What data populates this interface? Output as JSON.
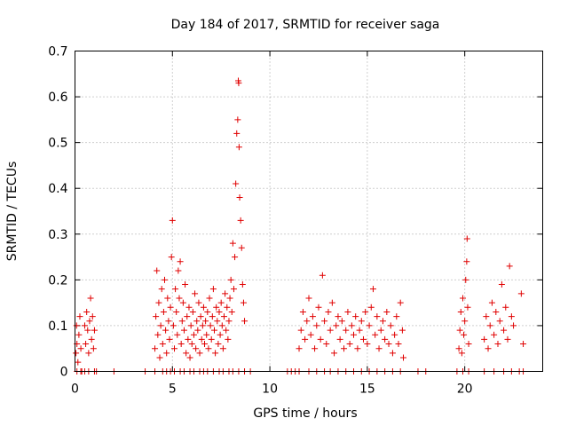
{
  "chart_data": {
    "type": "scatter",
    "title": "Day 184 of 2017, SRMTID for receiver saga",
    "xlabel": "GPS time / hours",
    "ylabel": "SRMTID / TECUs",
    "xlim": [
      0,
      24
    ],
    "ylim": [
      0,
      0.7
    ],
    "xticks": [
      0,
      5,
      10,
      15,
      20
    ],
    "xtick_labels": [
      "0",
      "5",
      "10",
      "15",
      "20"
    ],
    "yticks": [
      0,
      0.1,
      0.2,
      0.3,
      0.4,
      0.5,
      0.6,
      0.7
    ],
    "ytick_labels": [
      "0",
      "0.1",
      "0.2",
      "0.3",
      "0.4",
      "0.5",
      "0.6",
      "0.7"
    ],
    "grid": true,
    "marker": "plus",
    "color": "#e00000",
    "series": [
      {
        "name": "SRMTID",
        "points": [
          [
            0.05,
            0.04
          ],
          [
            0.08,
            0.1
          ],
          [
            0.1,
            0.06
          ],
          [
            0.15,
            0.02
          ],
          [
            0.2,
            0.08
          ],
          [
            0.25,
            0.12
          ],
          [
            0.3,
            0.05
          ],
          [
            0.5,
            0.1
          ],
          [
            0.55,
            0.06
          ],
          [
            0.6,
            0.13
          ],
          [
            0.65,
            0.09
          ],
          [
            0.7,
            0.04
          ],
          [
            0.75,
            0.11
          ],
          [
            0.8,
            0.16
          ],
          [
            0.85,
            0.07
          ],
          [
            0.9,
            0.12
          ],
          [
            0.95,
            0.05
          ],
          [
            1.0,
            0.09
          ],
          [
            4.1,
            0.05
          ],
          [
            4.15,
            0.12
          ],
          [
            4.2,
            0.22
          ],
          [
            4.25,
            0.08
          ],
          [
            4.3,
            0.15
          ],
          [
            4.35,
            0.03
          ],
          [
            4.4,
            0.1
          ],
          [
            4.45,
            0.18
          ],
          [
            4.5,
            0.06
          ],
          [
            4.55,
            0.13
          ],
          [
            4.6,
            0.2
          ],
          [
            4.65,
            0.09
          ],
          [
            4.7,
            0.04
          ],
          [
            4.75,
            0.16
          ],
          [
            4.8,
            0.11
          ],
          [
            4.85,
            0.07
          ],
          [
            4.9,
            0.14
          ],
          [
            4.95,
            0.25
          ],
          [
            5.0,
            0.33
          ],
          [
            5.05,
            0.1
          ],
          [
            5.1,
            0.05
          ],
          [
            5.15,
            0.18
          ],
          [
            5.2,
            0.13
          ],
          [
            5.25,
            0.08
          ],
          [
            5.3,
            0.22
          ],
          [
            5.35,
            0.16
          ],
          [
            5.4,
            0.24
          ],
          [
            5.45,
            0.06
          ],
          [
            5.5,
            0.11
          ],
          [
            5.55,
            0.15
          ],
          [
            5.6,
            0.09
          ],
          [
            5.65,
            0.19
          ],
          [
            5.7,
            0.04
          ],
          [
            5.75,
            0.12
          ],
          [
            5.8,
            0.07
          ],
          [
            5.85,
            0.14
          ],
          [
            5.9,
            0.03
          ],
          [
            5.95,
            0.1
          ],
          [
            6.0,
            0.06
          ],
          [
            6.05,
            0.13
          ],
          [
            6.1,
            0.08
          ],
          [
            6.15,
            0.17
          ],
          [
            6.2,
            0.05
          ],
          [
            6.25,
            0.11
          ],
          [
            6.3,
            0.09
          ],
          [
            6.35,
            0.15
          ],
          [
            6.4,
            0.04
          ],
          [
            6.45,
            0.12
          ],
          [
            6.5,
            0.07
          ],
          [
            6.55,
            0.1
          ],
          [
            6.6,
            0.14
          ],
          [
            6.65,
            0.06
          ],
          [
            6.7,
            0.11
          ],
          [
            6.75,
            0.08
          ],
          [
            6.8,
            0.13
          ],
          [
            6.85,
            0.05
          ],
          [
            6.9,
            0.16
          ],
          [
            6.95,
            0.1
          ],
          [
            7.0,
            0.07
          ],
          [
            7.05,
            0.12
          ],
          [
            7.1,
            0.18
          ],
          [
            7.15,
            0.09
          ],
          [
            7.2,
            0.04
          ],
          [
            7.25,
            0.14
          ],
          [
            7.3,
            0.11
          ],
          [
            7.35,
            0.06
          ],
          [
            7.4,
            0.13
          ],
          [
            7.45,
            0.08
          ],
          [
            7.5,
            0.15
          ],
          [
            7.55,
            0.1
          ],
          [
            7.6,
            0.05
          ],
          [
            7.65,
            0.12
          ],
          [
            7.7,
            0.17
          ],
          [
            7.75,
            0.09
          ],
          [
            7.8,
            0.14
          ],
          [
            7.85,
            0.07
          ],
          [
            7.9,
            0.11
          ],
          [
            7.95,
            0.16
          ],
          [
            8.0,
            0.2
          ],
          [
            8.05,
            0.13
          ],
          [
            8.1,
            0.28
          ],
          [
            8.15,
            0.18
          ],
          [
            8.2,
            0.25
          ],
          [
            8.25,
            0.41
          ],
          [
            8.3,
            0.52
          ],
          [
            8.35,
            0.55
          ],
          [
            8.38,
            0.635
          ],
          [
            8.4,
            0.63
          ],
          [
            8.42,
            0.49
          ],
          [
            8.45,
            0.38
          ],
          [
            8.5,
            0.33
          ],
          [
            8.55,
            0.27
          ],
          [
            8.6,
            0.19
          ],
          [
            8.65,
            0.15
          ],
          [
            8.7,
            0.11
          ],
          [
            11.5,
            0.05
          ],
          [
            11.6,
            0.09
          ],
          [
            11.7,
            0.13
          ],
          [
            11.8,
            0.07
          ],
          [
            11.9,
            0.11
          ],
          [
            12.0,
            0.16
          ],
          [
            12.1,
            0.08
          ],
          [
            12.2,
            0.12
          ],
          [
            12.3,
            0.05
          ],
          [
            12.4,
            0.1
          ],
          [
            12.5,
            0.14
          ],
          [
            12.6,
            0.07
          ],
          [
            12.7,
            0.21
          ],
          [
            12.8,
            0.11
          ],
          [
            12.9,
            0.06
          ],
          [
            13.0,
            0.13
          ],
          [
            13.1,
            0.09
          ],
          [
            13.2,
            0.15
          ],
          [
            13.3,
            0.04
          ],
          [
            13.4,
            0.1
          ],
          [
            13.5,
            0.12
          ],
          [
            13.6,
            0.07
          ],
          [
            13.7,
            0.11
          ],
          [
            13.8,
            0.05
          ],
          [
            13.9,
            0.09
          ],
          [
            14.0,
            0.13
          ],
          [
            14.1,
            0.06
          ],
          [
            14.2,
            0.1
          ],
          [
            14.3,
            0.08
          ],
          [
            14.4,
            0.12
          ],
          [
            14.5,
            0.05
          ],
          [
            14.6,
            0.09
          ],
          [
            14.7,
            0.11
          ],
          [
            14.8,
            0.07
          ],
          [
            14.9,
            0.13
          ],
          [
            15.0,
            0.06
          ],
          [
            15.1,
            0.1
          ],
          [
            15.2,
            0.14
          ],
          [
            15.3,
            0.18
          ],
          [
            15.4,
            0.08
          ],
          [
            15.5,
            0.12
          ],
          [
            15.6,
            0.05
          ],
          [
            15.7,
            0.09
          ],
          [
            15.8,
            0.11
          ],
          [
            15.9,
            0.07
          ],
          [
            16.0,
            0.13
          ],
          [
            16.1,
            0.06
          ],
          [
            16.2,
            0.1
          ],
          [
            16.3,
            0.04
          ],
          [
            16.4,
            0.08
          ],
          [
            16.5,
            0.12
          ],
          [
            16.6,
            0.06
          ],
          [
            16.7,
            0.15
          ],
          [
            16.8,
            0.09
          ],
          [
            16.85,
            0.03
          ],
          [
            19.7,
            0.05
          ],
          [
            19.75,
            0.09
          ],
          [
            19.8,
            0.13
          ],
          [
            19.85,
            0.04
          ],
          [
            19.9,
            0.16
          ],
          [
            19.95,
            0.08
          ],
          [
            20.0,
            0.11
          ],
          [
            20.05,
            0.2
          ],
          [
            20.1,
            0.24
          ],
          [
            20.12,
            0.29
          ],
          [
            20.15,
            0.14
          ],
          [
            20.2,
            0.06
          ],
          [
            21.0,
            0.07
          ],
          [
            21.1,
            0.12
          ],
          [
            21.2,
            0.05
          ],
          [
            21.3,
            0.1
          ],
          [
            21.4,
            0.15
          ],
          [
            21.5,
            0.08
          ],
          [
            21.6,
            0.13
          ],
          [
            21.7,
            0.06
          ],
          [
            21.8,
            0.11
          ],
          [
            21.9,
            0.19
          ],
          [
            22.0,
            0.09
          ],
          [
            22.1,
            0.14
          ],
          [
            22.2,
            0.07
          ],
          [
            22.3,
            0.23
          ],
          [
            22.4,
            0.12
          ],
          [
            22.5,
            0.1
          ],
          [
            22.9,
            0.17
          ],
          [
            23.0,
            0.06
          ]
        ],
        "zeros_x": [
          0.1,
          0.3,
          0.35,
          0.5,
          0.7,
          1.0,
          1.1,
          2.0,
          3.6,
          4.1,
          4.5,
          4.7,
          4.9,
          5.1,
          5.4,
          5.6,
          5.9,
          6.1,
          6.4,
          6.6,
          6.8,
          7.1,
          7.4,
          7.6,
          7.9,
          8.1,
          8.4,
          8.7,
          9.0,
          10.9,
          11.1,
          11.3,
          11.5,
          12.0,
          12.4,
          12.8,
          13.1,
          13.5,
          13.9,
          14.3,
          14.7,
          15.1,
          15.5,
          15.9,
          16.3,
          16.7,
          17.6,
          18.0,
          19.6,
          19.9,
          20.2,
          21.0,
          21.5,
          22.0,
          22.4,
          22.8,
          23.0
        ]
      }
    ]
  }
}
